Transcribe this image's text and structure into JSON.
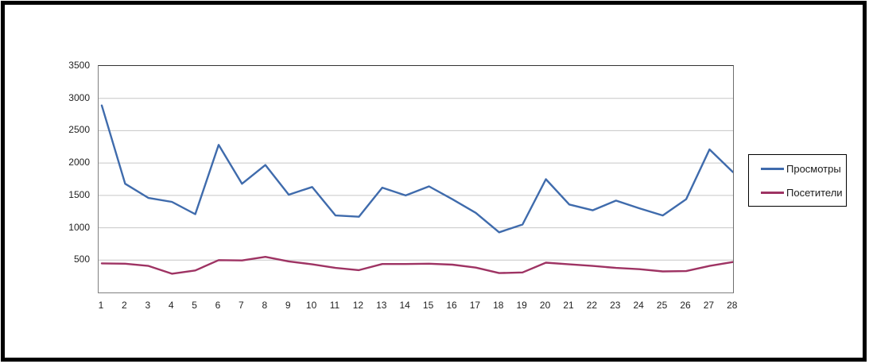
{
  "chart_data": {
    "type": "line",
    "title": "",
    "xlabel": "",
    "ylabel": "",
    "categories": [
      "1",
      "2",
      "3",
      "4",
      "5",
      "6",
      "7",
      "8",
      "9",
      "10",
      "11",
      "12",
      "13",
      "14",
      "15",
      "16",
      "17",
      "18",
      "19",
      "20",
      "21",
      "22",
      "23",
      "24",
      "25",
      "26",
      "27",
      "28"
    ],
    "series": [
      {
        "name": "Просмотры",
        "color": "#3F6BAC",
        "values": [
          2890,
          1680,
          1460,
          1400,
          1210,
          2280,
          1680,
          1970,
          1510,
          1630,
          1190,
          1170,
          1620,
          1500,
          1640,
          1440,
          1230,
          930,
          1050,
          1750,
          1360,
          1270,
          1420,
          1300,
          1190,
          1440,
          2210,
          1860
        ]
      },
      {
        "name": "Посетители",
        "color": "#9E3363",
        "values": [
          450,
          445,
          410,
          290,
          340,
          500,
          495,
          550,
          480,
          435,
          380,
          345,
          440,
          440,
          445,
          430,
          385,
          300,
          310,
          460,
          435,
          410,
          380,
          360,
          325,
          330,
          410,
          470
        ]
      }
    ],
    "ylim": [
      0,
      3500
    ],
    "ytick_labels": [
      "3500",
      "3000",
      "2500",
      "2000",
      "1500",
      "1000",
      "500"
    ],
    "grid": true,
    "gridline_color": "#c6c6c6",
    "legend_position": "right"
  },
  "legend": {
    "items": [
      {
        "label": "Просмотры"
      },
      {
        "label": "Посетители"
      }
    ]
  }
}
